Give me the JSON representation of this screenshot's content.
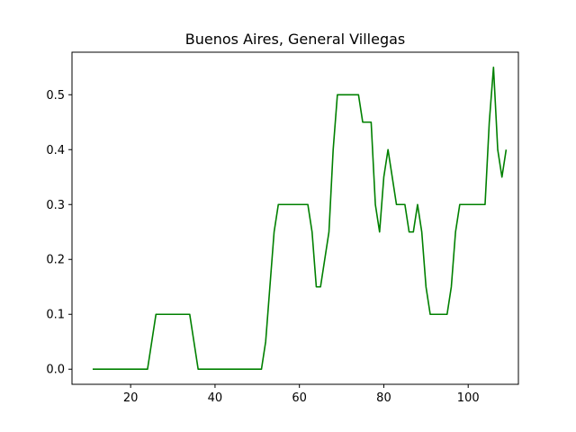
{
  "chart_data": {
    "type": "line",
    "title": "Buenos Aires, General Villegas",
    "xlabel": "",
    "ylabel": "",
    "xlim": [
      6.1,
      111.9
    ],
    "ylim": [
      -0.0275,
      0.5775
    ],
    "xticks": [
      20,
      40,
      60,
      80,
      100
    ],
    "xtick_labels": [
      "20",
      "40",
      "60",
      "80",
      "100"
    ],
    "yticks": [
      0.0,
      0.1,
      0.2,
      0.3,
      0.4,
      0.5
    ],
    "ytick_labels": [
      "0.0",
      "0.1",
      "0.2",
      "0.3",
      "0.4",
      "0.5"
    ],
    "grid": false,
    "series": [
      {
        "name": "General Villegas",
        "color": "#008000",
        "x": [
          11,
          24,
          26,
          34,
          36,
          51,
          52,
          54,
          55,
          62,
          63,
          64,
          65,
          67,
          68,
          69,
          74,
          75,
          77,
          78,
          79,
          80,
          81,
          83,
          85,
          86,
          87,
          88,
          89,
          90,
          91,
          95,
          96,
          97,
          98,
          104,
          105,
          106,
          107,
          108,
          109
        ],
        "y": [
          0.0,
          0.0,
          0.1,
          0.1,
          0.0,
          0.0,
          0.05,
          0.25,
          0.3,
          0.3,
          0.25,
          0.15,
          0.15,
          0.25,
          0.4,
          0.5,
          0.5,
          0.45,
          0.45,
          0.3,
          0.25,
          0.35,
          0.4,
          0.3,
          0.3,
          0.25,
          0.25,
          0.3,
          0.25,
          0.15,
          0.1,
          0.1,
          0.15,
          0.25,
          0.3,
          0.3,
          0.45,
          0.55,
          0.4,
          0.35,
          0.4
        ]
      }
    ]
  }
}
